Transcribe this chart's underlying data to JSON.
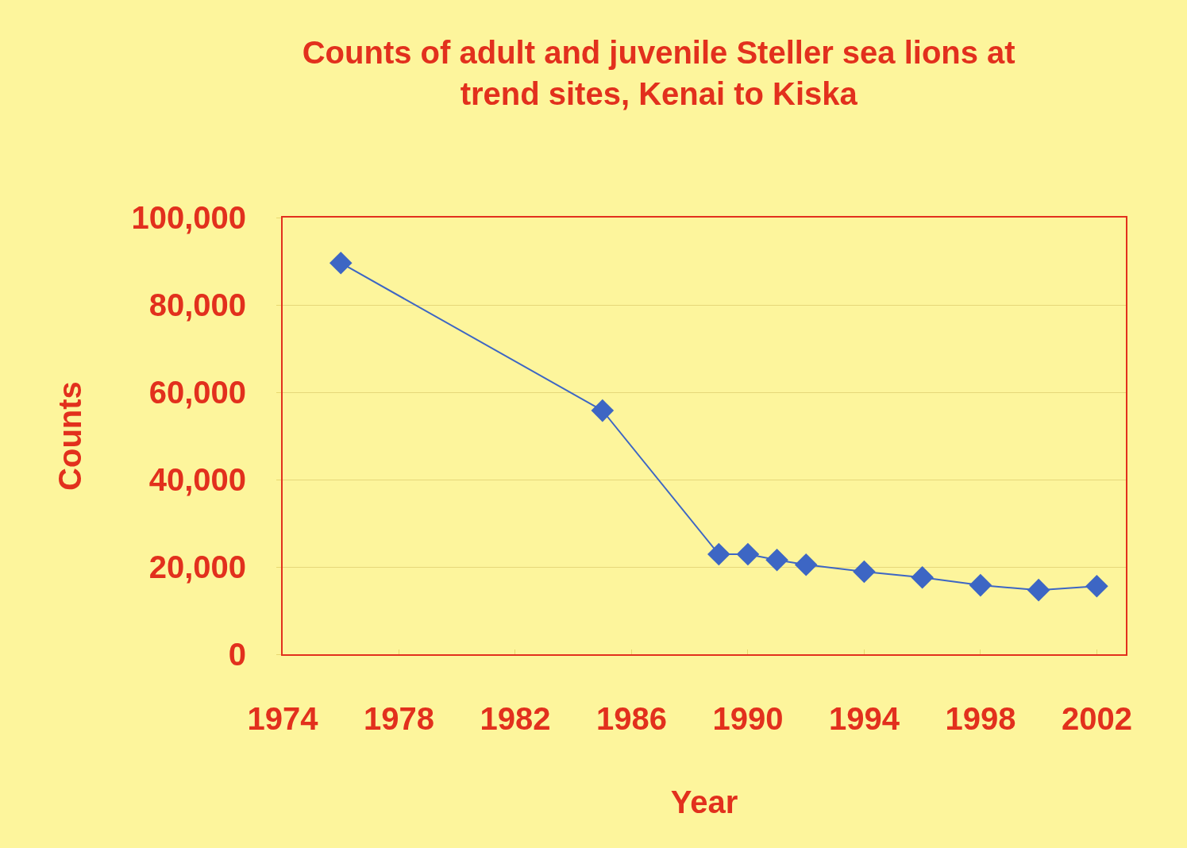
{
  "chart_data": {
    "type": "line",
    "title": "Counts of adult and juvenile Steller sea lions at trend sites, Kenai to Kiska",
    "xlabel": "Year",
    "ylabel": "Counts",
    "x": [
      1976,
      1985,
      1989,
      1990,
      1991,
      1992,
      1994,
      1996,
      1998,
      2000,
      2002
    ],
    "series": [
      {
        "color": "#3d66c4",
        "values": [
          89600,
          55800,
          22900,
          22900,
          21600,
          20500,
          18900,
          17600,
          15800,
          14700,
          15600
        ]
      }
    ],
    "xlim": [
      1974,
      2003
    ],
    "xticks": [
      1974,
      1978,
      1982,
      1986,
      1990,
      1994,
      1998,
      2002
    ],
    "ylim": [
      0,
      100000
    ],
    "yticks": [
      {
        "value": 0,
        "label": "0"
      },
      {
        "value": 20000,
        "label": "20,000"
      },
      {
        "value": 40000,
        "label": "40,000"
      },
      {
        "value": 60000,
        "label": "60,000"
      },
      {
        "value": 80000,
        "label": "80,000"
      },
      {
        "value": 100000,
        "label": "100,000"
      }
    ],
    "grid": "y",
    "marker": "diamond",
    "line_style": "solid"
  }
}
